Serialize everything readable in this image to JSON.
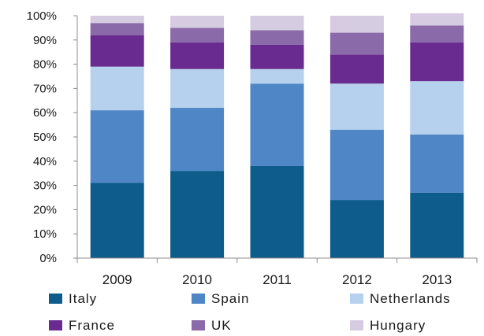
{
  "chart_data": {
    "type": "bar",
    "stacked": true,
    "categories": [
      "2009",
      "2010",
      "2011",
      "2012",
      "2013"
    ],
    "series": [
      {
        "name": "Italy",
        "color": "#0d5c8c",
        "values": [
          31,
          36,
          38,
          24,
          27
        ]
      },
      {
        "name": "Spain",
        "color": "#4f86c6",
        "values": [
          30,
          26,
          34,
          29,
          24
        ]
      },
      {
        "name": "Netherlands",
        "color": "#b6d1ee",
        "values": [
          18,
          16,
          6,
          19,
          22
        ]
      },
      {
        "name": "France",
        "color": "#6a2b91",
        "values": [
          13,
          11,
          10,
          12,
          16
        ]
      },
      {
        "name": "UK",
        "color": "#8a6aa8",
        "values": [
          5,
          6,
          6,
          9,
          7
        ]
      },
      {
        "name": "Hungary",
        "color": "#d6cce2",
        "values": [
          3,
          5,
          6,
          7,
          5
        ]
      }
    ],
    "ylim": [
      0,
      100
    ],
    "yticks": [
      "0%",
      "10%",
      "20%",
      "30%",
      "40%",
      "50%",
      "60%",
      "70%",
      "80%",
      "90%",
      "100%"
    ],
    "grid": false,
    "legend": "bottom"
  }
}
